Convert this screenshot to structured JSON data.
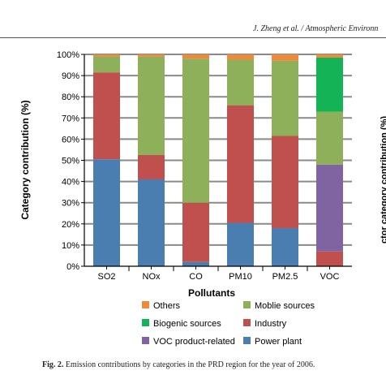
{
  "journal_header": "J. Zheng et al. / Atmospheric Environn",
  "side_label_cut": "ctor category contribution (%)",
  "caption": {
    "label": "Fig. 2.",
    "text": "Emission contributions by categories in the PRD region for the year of 2006."
  },
  "colors": {
    "power_plant": "#4a7eb0",
    "industry": "#c0504d",
    "voc_product": "#8064a2",
    "mobile": "#8fb05a",
    "biogenic": "#14b356",
    "others": "#ee8a3c"
  },
  "chart_data": {
    "type": "bar",
    "stacked": true,
    "title": "",
    "xlabel": "Pollutants",
    "ylabel": "Category contribution (%)",
    "ylim": [
      0,
      100
    ],
    "yticks": [
      "0%",
      "10%",
      "20%",
      "30%",
      "40%",
      "50%",
      "60%",
      "70%",
      "80%",
      "90%",
      "100%"
    ],
    "grid": true,
    "legend_position": "bottom",
    "categories": [
      "SO2",
      "NOx",
      "CO",
      "PM10",
      "PM2.5",
      "VOC"
    ],
    "series": [
      {
        "name": "Power plant",
        "color": "#4a7eb0",
        "values": [
          50.5,
          41,
          2,
          20.5,
          18,
          0
        ]
      },
      {
        "name": "Industry",
        "color": "#c0504d",
        "values": [
          41,
          11.5,
          28,
          55.5,
          43.5,
          7
        ]
      },
      {
        "name": "VOC product-related",
        "color": "#8064a2",
        "values": [
          0,
          0,
          0,
          0,
          0,
          41
        ]
      },
      {
        "name": "Moblie sources",
        "color": "#8fb05a",
        "values": [
          7.5,
          46.5,
          68,
          21.5,
          35.5,
          25
        ]
      },
      {
        "name": "Biogenic sources",
        "color": "#14b356",
        "values": [
          0,
          0,
          0,
          0,
          0,
          25.5
        ]
      },
      {
        "name": "Others",
        "color": "#ee8a3c",
        "values": [
          1,
          1,
          2,
          2.5,
          3,
          1.5
        ]
      }
    ],
    "legend_order": [
      "Others",
      "Moblie sources",
      "Biogenic sources",
      "Industry",
      "VOC product-related",
      "Power plant"
    ]
  }
}
